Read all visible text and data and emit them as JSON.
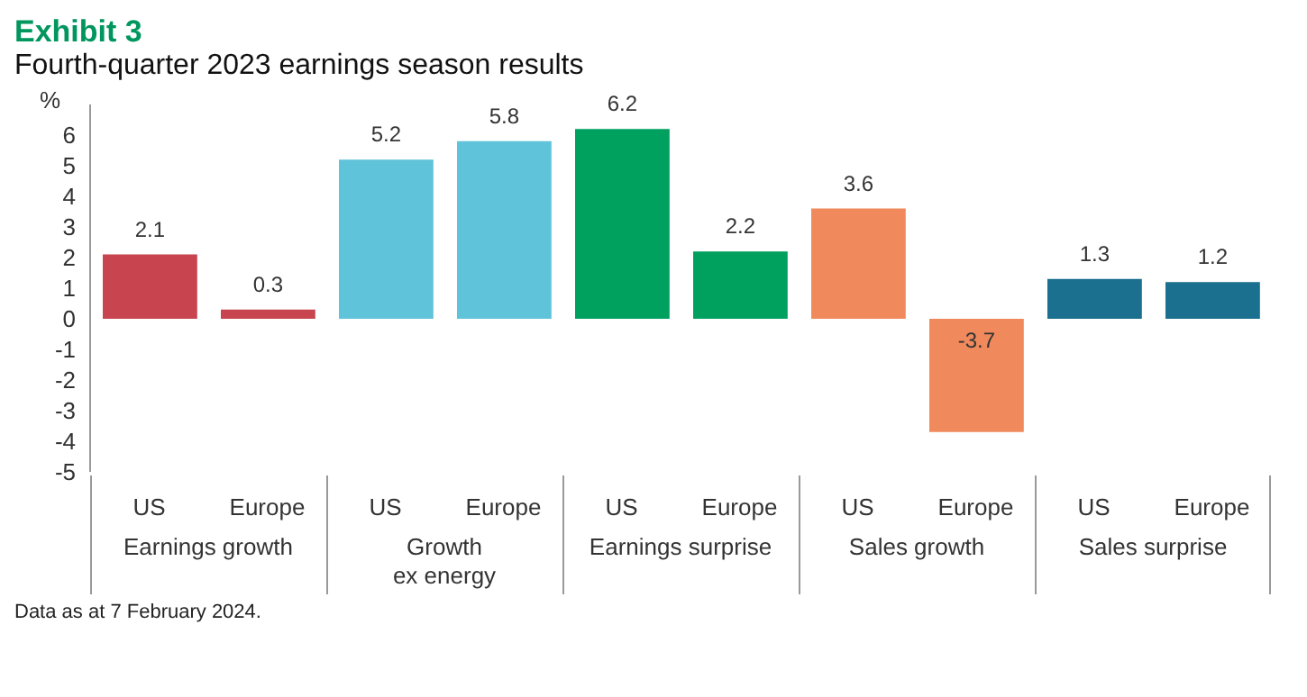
{
  "chart_data": {
    "type": "bar",
    "title": "Exhibit 3",
    "subtitle": "Fourth-quarter 2023 earnings season results",
    "ylabel": "%",
    "categories": [
      "US",
      "Europe",
      "US",
      "Europe",
      "US",
      "Europe",
      "US",
      "Europe",
      "US",
      "Europe"
    ],
    "values": [
      2.1,
      0.3,
      5.2,
      5.8,
      6.2,
      2.2,
      3.6,
      -3.7,
      1.3,
      1.2
    ],
    "colors": [
      "#c8454f",
      "#c8454f",
      "#5fc3d9",
      "#5fc3d9",
      "#00a05e",
      "#00a05e",
      "#f08a5d",
      "#f08a5d",
      "#1b6f8f",
      "#1b6f8f"
    ],
    "ylim": [
      -5,
      7
    ],
    "yticks": [
      -5,
      -4,
      -3,
      -2,
      -1,
      0,
      1,
      2,
      3,
      4,
      5,
      6
    ],
    "data_labels": true,
    "grid": false,
    "legend": false,
    "annotations": [
      "Earnings growth",
      "Growth\nex energy",
      "Earnings surprise",
      "Sales growth",
      "Sales surprise",
      "Data as at 7 February 2024."
    ]
  }
}
